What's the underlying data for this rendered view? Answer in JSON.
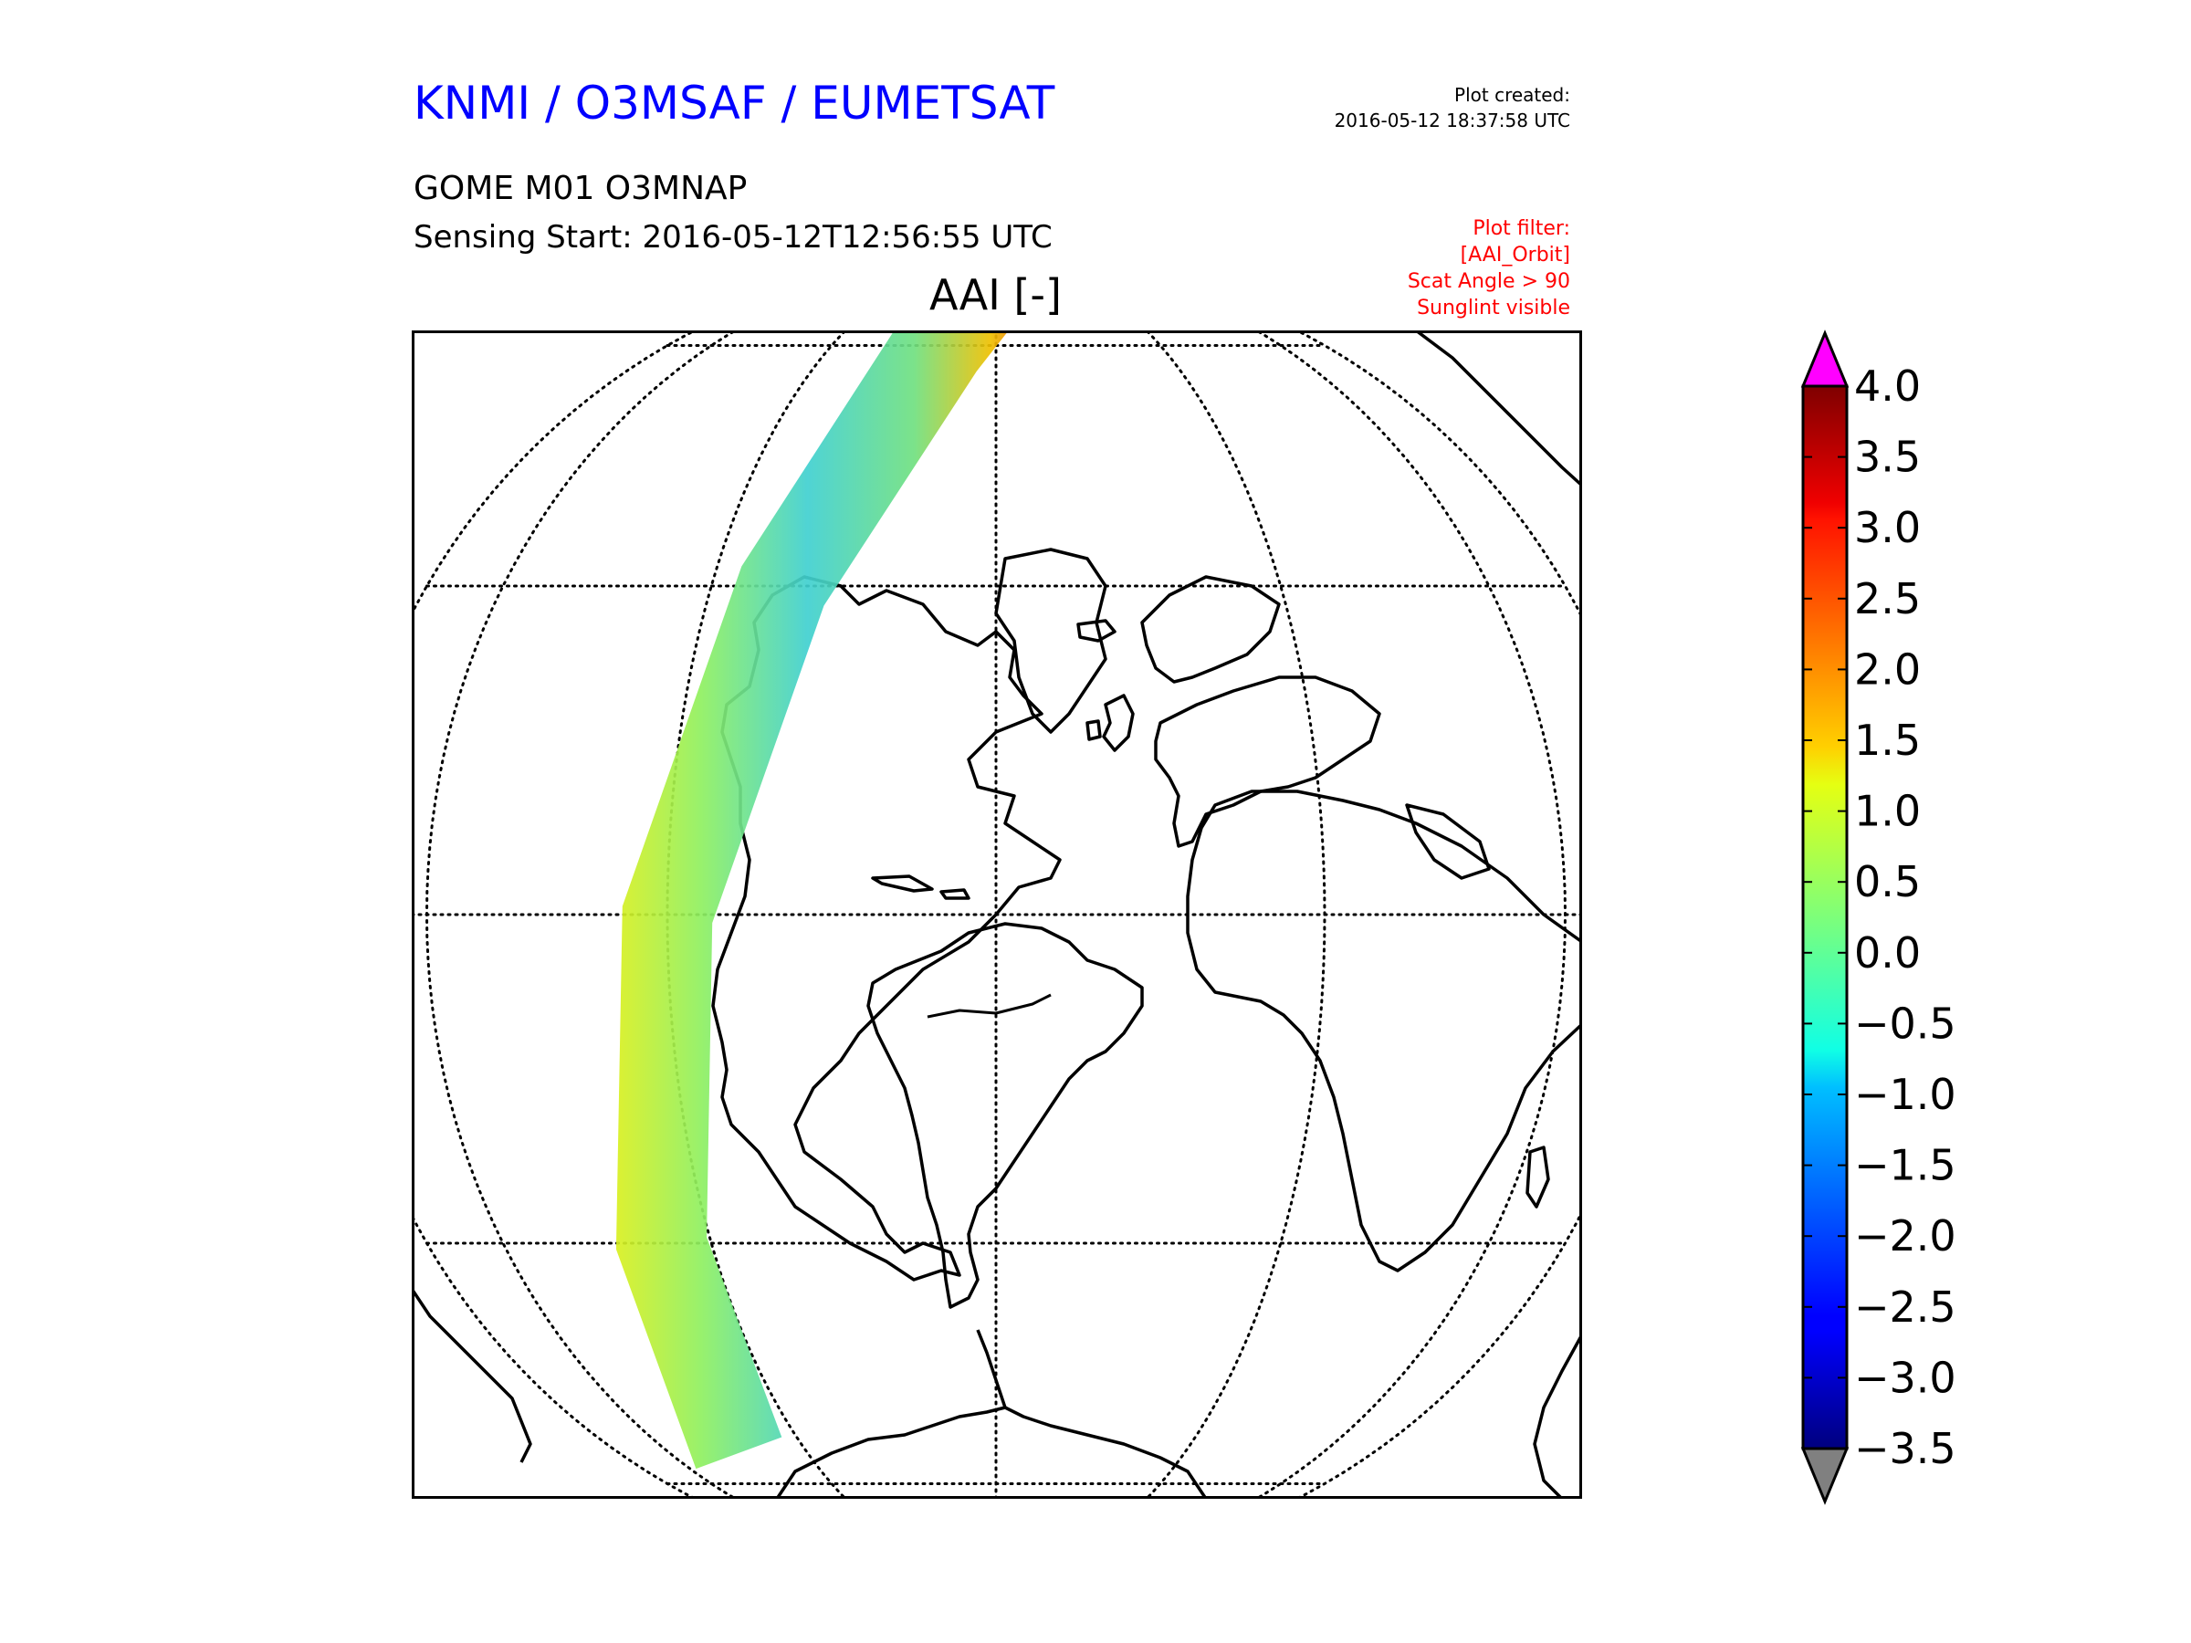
{
  "header": {
    "org_title": "KNMI / O3MSAF / EUMETSAT",
    "product": "GOME M01 O3MNAP",
    "sensing_start": "Sensing Start: 2016-05-12T12:56:55 UTC",
    "plot_created_label": "Plot created:",
    "plot_created_time": "2016-05-12 18:37:58 UTC",
    "filter_lines": [
      "Plot filter:",
      "[AAI_Orbit]",
      "Scat Angle > 90",
      "Sunglint visible"
    ],
    "filter_color": "#ff0000",
    "org_title_color": "#0000ff"
  },
  "map": {
    "title": "AAI [-]",
    "projection": "orthographic",
    "center": {
      "lat": 0,
      "lon": -30
    },
    "graticule": {
      "lat_step": 30,
      "lon_step": 30,
      "style": "dotted"
    },
    "swath": {
      "description_visible": false,
      "track": [
        {
          "lat": 85,
          "lon": -20
        },
        {
          "lat": 60,
          "lon": -40
        },
        {
          "lat": 30,
          "lon": -52
        },
        {
          "lat": 0,
          "lon": -60
        },
        {
          "lat": -30,
          "lon": -66
        },
        {
          "lat": -55,
          "lon": -73
        }
      ]
    }
  },
  "colorbar": {
    "min": -3.5,
    "max": 4.0,
    "ticks": [
      "4.0",
      "3.5",
      "3.0",
      "2.5",
      "2.0",
      "1.5",
      "1.0",
      "0.5",
      "0.0",
      "−0.5",
      "−1.0",
      "−1.5",
      "−2.0",
      "−2.5",
      "−3.0",
      "−3.5"
    ],
    "colormap": "jet",
    "over_color": "#ff00ff",
    "under_color": "#808080",
    "extend": "both"
  }
}
